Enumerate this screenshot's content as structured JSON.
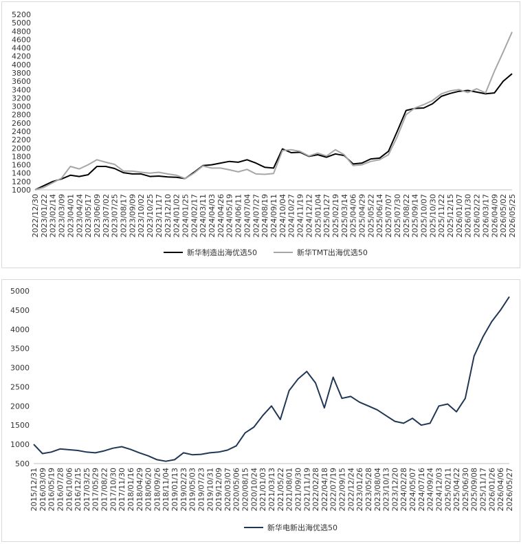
{
  "chart_data": [
    {
      "type": "line",
      "ylim": [
        1000,
        5200
      ],
      "yticks": [
        1000,
        1200,
        1400,
        1600,
        1800,
        2000,
        2200,
        2400,
        2600,
        2800,
        3000,
        3200,
        3400,
        3600,
        3800,
        4000,
        4200,
        4400,
        4600,
        4800,
        5000,
        5200
      ],
      "x": [
        "2022/12/30",
        "2023/01/22",
        "2023/02/14",
        "2023/03/09",
        "2023/04/01",
        "2023/04/24",
        "2023/05/17",
        "2023/06/09",
        "2023/07/02",
        "2023/07/25",
        "2023/08/17",
        "2023/09/09",
        "2023/10/02",
        "2023/10/25",
        "2023/11/17",
        "2023/12/10",
        "2024/01/02",
        "2024/01/25",
        "2024/02/17",
        "2024/03/11",
        "2024/04/03",
        "2024/04/26",
        "2024/05/19",
        "2024/06/11",
        "2024/07/04",
        "2024/07/27",
        "2024/08/19",
        "2024/09/11",
        "2024/10/04",
        "2024/10/27",
        "2024/11/19",
        "2024/12/12",
        "2025/01/04",
        "2025/01/27",
        "2025/02/19",
        "2025/03/14",
        "2025/04/06",
        "2025/04/29",
        "2025/05/22",
        "2025/06/14",
        "2025/07/07",
        "2025/07/30",
        "2025/08/22",
        "2025/09/14",
        "2025/10/07",
        "2025/10/30",
        "2025/11/22",
        "2025/12/15",
        "2026/01/07",
        "2026/01/30",
        "2026/02/22",
        "2026/03/17",
        "2026/04/09",
        "2026/05/02",
        "2026/05/25"
      ],
      "series": [
        {
          "name": "新华制造出海优选50",
          "color": "#000000",
          "width": 2,
          "values": [
            1000,
            1100,
            1200,
            1260,
            1350,
            1320,
            1360,
            1560,
            1560,
            1510,
            1410,
            1380,
            1380,
            1320,
            1330,
            1310,
            1300,
            1270,
            1420,
            1580,
            1600,
            1640,
            1680,
            1660,
            1720,
            1640,
            1540,
            1520,
            1980,
            1890,
            1900,
            1800,
            1840,
            1780,
            1860,
            1820,
            1620,
            1640,
            1740,
            1760,
            1920,
            2400,
            2900,
            2950,
            2960,
            3060,
            3240,
            3310,
            3360,
            3380,
            3340,
            3300,
            3320,
            3600,
            3780
          ]
        },
        {
          "name": "新华TMT出海优选50",
          "color": "#a6a6a6",
          "width": 2,
          "values": [
            1000,
            1060,
            1170,
            1280,
            1560,
            1500,
            1600,
            1720,
            1660,
            1610,
            1450,
            1450,
            1420,
            1400,
            1420,
            1380,
            1350,
            1270,
            1400,
            1570,
            1520,
            1520,
            1480,
            1430,
            1490,
            1380,
            1370,
            1390,
            1940,
            1960,
            1920,
            1810,
            1880,
            1810,
            1960,
            1840,
            1580,
            1600,
            1680,
            1720,
            1840,
            2270,
            2800,
            2960,
            3040,
            3140,
            3300,
            3370,
            3400,
            3330,
            3420,
            3320,
            3840,
            4300,
            4780
          ]
        }
      ]
    },
    {
      "type": "line",
      "ylim": [
        500,
        5000
      ],
      "yticks": [
        500,
        1000,
        1500,
        2000,
        2500,
        3000,
        3500,
        4000,
        4500,
        5000
      ],
      "x": [
        "2015/12/31",
        "2016/03/09",
        "2016/05/19",
        "2016/07/28",
        "2016/10/06",
        "2016/12/15",
        "2017/03/25",
        "2017/05/29",
        "2017/08/22",
        "2017/10/30",
        "2017/11/30",
        "2018/01/16",
        "2018/04/29",
        "2018/06/20",
        "2018/09/26",
        "2018/11/04",
        "2019/01/13",
        "2019/02/23",
        "2019/05/03",
        "2019/07/23",
        "2019/10/31",
        "2019/12/09",
        "2020/03/07",
        "2020/05/06",
        "2020/08/15",
        "2020/10/24",
        "2021/01/03",
        "2021/03/13",
        "2021/05/22",
        "2021/08/01",
        "2021/09/30",
        "2021/11/19",
        "2022/02/28",
        "2022/04/18",
        "2022/07/19",
        "2022/09/15",
        "2022/12/24",
        "2023/01/26",
        "2023/05/28",
        "2023/08/04",
        "2023/10/13",
        "2023/12/20",
        "2024/02/28",
        "2024/05/07",
        "2024/07/16",
        "2024/09/24",
        "2024/12/03",
        "2025/02/11",
        "2025/04/22",
        "2025/06/30",
        "2025/09/08",
        "2025/11/17",
        "2026/01/26",
        "2026/04/06",
        "2026/05/27"
      ],
      "series": [
        {
          "name": "新华电新出海优选50",
          "color": "#1f3654",
          "width": 2,
          "values": [
            1000,
            760,
            800,
            880,
            860,
            840,
            800,
            780,
            830,
            900,
            940,
            870,
            780,
            700,
            600,
            560,
            600,
            780,
            730,
            740,
            780,
            800,
            850,
            960,
            1300,
            1450,
            1750,
            2000,
            1650,
            2400,
            2700,
            2900,
            2600,
            1950,
            2750,
            2200,
            2250,
            2100,
            2000,
            1900,
            1750,
            1600,
            1550,
            1680,
            1500,
            1550,
            2000,
            2050,
            1850,
            2200,
            3300,
            3800,
            4200,
            4500,
            4850
          ]
        }
      ]
    }
  ]
}
